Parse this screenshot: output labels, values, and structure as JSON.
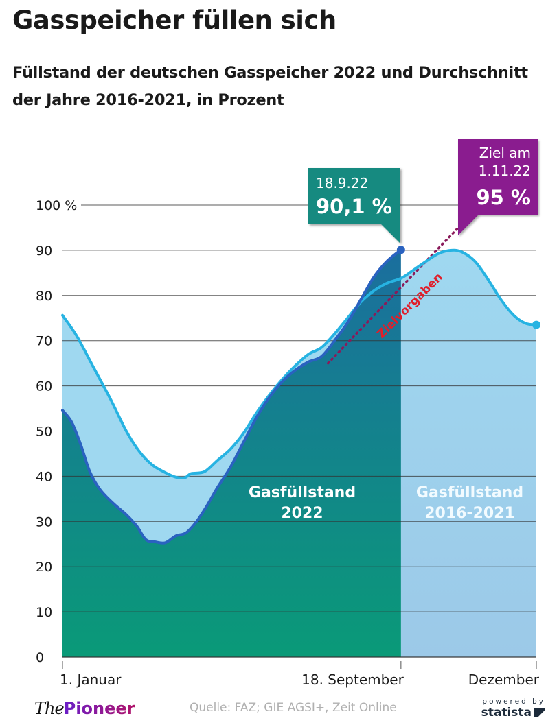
{
  "title": "Gasspeicher füllen sich",
  "subtitle": "Füllstand der deutschen Gasspeicher 2022 und Durchschnitt der Jahre 2016-2021, in Prozent",
  "source": "Quelle: FAZ; GIE AGSI+, Zeit Online",
  "logo": {
    "the": "The",
    "pioneer": "Pioneer"
  },
  "statista": {
    "powered_by": "powered by",
    "name": "statista",
    "icon": "statista-logo-icon"
  },
  "colors": {
    "fill_2022_top": "#1b6e9e",
    "fill_2022_bottom": "#0a9a78",
    "line_2022": "#2a62c0",
    "fill_avg": "#9fd8f0",
    "fill_avg_right_bottom": "#9cc9e8",
    "line_avg": "#27b3e2",
    "callout_2022": "#148a80",
    "callout_target": "#8a1a8f",
    "target_line": "#8a1a5a",
    "target_label": "#e01e2a",
    "grid": "#333333"
  },
  "chart_data": {
    "type": "area",
    "title": "Gasspeicher füllen sich",
    "subtitle": "Füllstand der deutschen Gasspeicher 2022 und Durchschnitt der Jahre 2016-2021, in Prozent",
    "xlabel": "",
    "ylabel": "",
    "ylim": [
      0,
      100
    ],
    "x_domain": "day of year (1 = 1. Januar, 365 = 31. Dezember)",
    "xlim": [
      1,
      365
    ],
    "yticks": [
      {
        "value": 0,
        "label": "0"
      },
      {
        "value": 10,
        "label": "10"
      },
      {
        "value": 20,
        "label": "20"
      },
      {
        "value": 30,
        "label": "30"
      },
      {
        "value": 40,
        "label": "40"
      },
      {
        "value": 50,
        "label": "50"
      },
      {
        "value": 60,
        "label": "60"
      },
      {
        "value": 70,
        "label": "70"
      },
      {
        "value": 80,
        "label": "80"
      },
      {
        "value": 90,
        "label": "90"
      },
      {
        "value": 100,
        "label": "100 %"
      }
    ],
    "xticks": [
      {
        "day": 1,
        "label": "1. Januar",
        "align": "start"
      },
      {
        "day": 261,
        "label": "18. September",
        "align": "end"
      },
      {
        "day": 365,
        "label": "Dezember",
        "align": "end"
      }
    ],
    "grid": true,
    "series": [
      {
        "name": "Gasfüllstand 2016-2021",
        "label_lines": [
          "Gasfüllstand",
          "2016-2021"
        ],
        "points": [
          [
            1,
            75.6
          ],
          [
            12,
            71
          ],
          [
            25,
            64
          ],
          [
            38,
            57
          ],
          [
            50,
            50
          ],
          [
            60,
            45.5
          ],
          [
            70,
            42.5
          ],
          [
            80,
            40.8
          ],
          [
            88,
            39.8
          ],
          [
            95,
            39.7
          ],
          [
            100,
            40.6
          ],
          [
            110,
            41
          ],
          [
            120,
            43.5
          ],
          [
            130,
            46
          ],
          [
            140,
            49.5
          ],
          [
            150,
            54
          ],
          [
            160,
            58
          ],
          [
            170,
            61.5
          ],
          [
            180,
            64.5
          ],
          [
            190,
            67
          ],
          [
            200,
            68.5
          ],
          [
            210,
            71.5
          ],
          [
            220,
            75
          ],
          [
            230,
            78.5
          ],
          [
            240,
            81
          ],
          [
            250,
            82.7
          ],
          [
            261,
            83.8
          ],
          [
            270,
            85.5
          ],
          [
            280,
            87.5
          ],
          [
            290,
            89.3
          ],
          [
            300,
            90
          ],
          [
            308,
            89.6
          ],
          [
            318,
            87.5
          ],
          [
            328,
            83.5
          ],
          [
            338,
            79
          ],
          [
            348,
            75.5
          ],
          [
            357,
            73.8
          ],
          [
            365,
            73.5
          ]
        ]
      },
      {
        "name": "Gasfüllstand 2022",
        "label_lines": [
          "Gasfüllstand",
          "2022"
        ],
        "points": [
          [
            1,
            54.6
          ],
          [
            8,
            52
          ],
          [
            15,
            47
          ],
          [
            22,
            41
          ],
          [
            30,
            37
          ],
          [
            40,
            34
          ],
          [
            50,
            31.5
          ],
          [
            58,
            29
          ],
          [
            65,
            26
          ],
          [
            72,
            25.5
          ],
          [
            80,
            25.3
          ],
          [
            88,
            26.8
          ],
          [
            96,
            27.5
          ],
          [
            104,
            30
          ],
          [
            112,
            33.5
          ],
          [
            120,
            37.5
          ],
          [
            130,
            42
          ],
          [
            140,
            47.5
          ],
          [
            150,
            53
          ],
          [
            160,
            57.5
          ],
          [
            170,
            61
          ],
          [
            180,
            63.5
          ],
          [
            190,
            65.3
          ],
          [
            200,
            66.5
          ],
          [
            210,
            70
          ],
          [
            220,
            74
          ],
          [
            230,
            79
          ],
          [
            240,
            84
          ],
          [
            250,
            87.5
          ],
          [
            261,
            90.1
          ]
        ]
      }
    ],
    "target_line": {
      "name": "Zielvorgaben",
      "points": [
        [
          205,
          65
        ],
        [
          305,
          95
        ]
      ]
    },
    "annotations": [
      {
        "date": "18.9.22",
        "value_label": "90,1 %",
        "day": 261,
        "value": 90.1
      },
      {
        "lines": [
          "Ziel am",
          "1.11.22"
        ],
        "value_label": "95 %",
        "day": 305,
        "value": 95
      }
    ],
    "legend": "inline-labels"
  }
}
